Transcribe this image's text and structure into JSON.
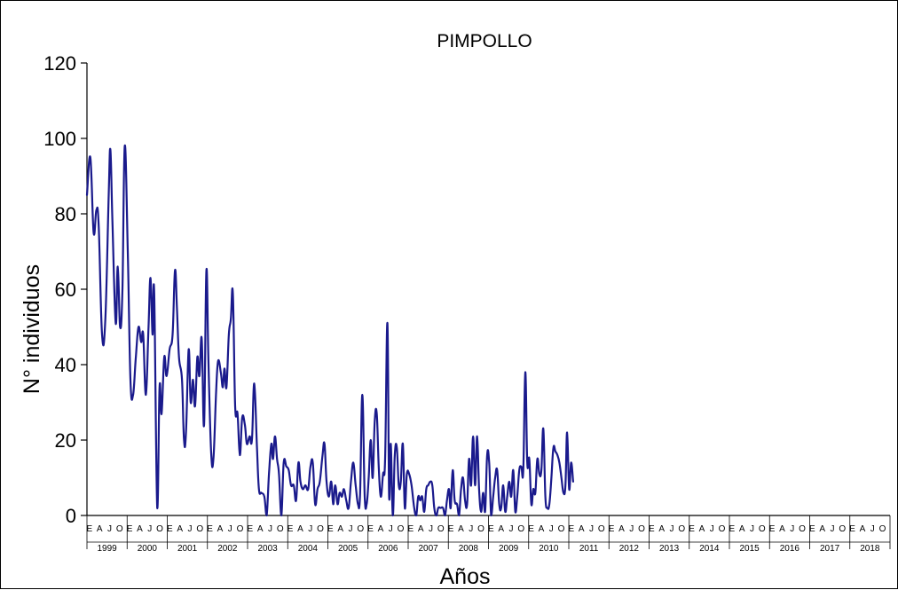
{
  "chart_data": {
    "type": "line",
    "title": "PIMPOLLO",
    "xlabel": "Años",
    "ylabel": "N° individuos",
    "ylim": [
      0,
      120
    ],
    "yticks": [
      0,
      20,
      40,
      60,
      80,
      100,
      120
    ],
    "grid": false,
    "legend": "none",
    "month_labels": [
      "E",
      "A",
      "J",
      "O"
    ],
    "year_labels": [
      "1999",
      "2000",
      "2001",
      "2002",
      "2003",
      "2004",
      "2005",
      "2006",
      "2007",
      "2008",
      "2009",
      "2010",
      "2011",
      "2012",
      "2013",
      "2014",
      "2015",
      "2016",
      "2017",
      "2018"
    ],
    "series": [
      {
        "color": "#1a1a8c",
        "x_unit": "months since Jan 1999",
        "points": [
          [
            0,
            85
          ],
          [
            1,
            95
          ],
          [
            2,
            75
          ],
          [
            2.8,
            81
          ],
          [
            3.5,
            77
          ],
          [
            4.5,
            48
          ],
          [
            5.5,
            52
          ],
          [
            6.5,
            85
          ],
          [
            7,
            97
          ],
          [
            7.6,
            78
          ],
          [
            8.6,
            51
          ],
          [
            9.2,
            66
          ],
          [
            9.9,
            50
          ],
          [
            10.6,
            60
          ],
          [
            11.3,
            98
          ],
          [
            12.2,
            70
          ],
          [
            13,
            36
          ],
          [
            13.8,
            32
          ],
          [
            14.6,
            42
          ],
          [
            15.4,
            50
          ],
          [
            16.2,
            46
          ],
          [
            16.8,
            48
          ],
          [
            17.6,
            32
          ],
          [
            18.4,
            50
          ],
          [
            19,
            63
          ],
          [
            19.6,
            48
          ],
          [
            20.1,
            59
          ],
          [
            21,
            2
          ],
          [
            21.7,
            34
          ],
          [
            22.3,
            27
          ],
          [
            23.1,
            42
          ],
          [
            23.8,
            37
          ],
          [
            24.7,
            44
          ],
          [
            25.6,
            48
          ],
          [
            26.3,
            65
          ],
          [
            26.9,
            55
          ],
          [
            27.5,
            42
          ],
          [
            28.4,
            36
          ],
          [
            29,
            20
          ],
          [
            29.6,
            22
          ],
          [
            30.4,
            44
          ],
          [
            31,
            30
          ],
          [
            31.7,
            36
          ],
          [
            32.3,
            29
          ],
          [
            33,
            42
          ],
          [
            33.6,
            37
          ],
          [
            34.3,
            47
          ],
          [
            35,
            24
          ],
          [
            35.7,
            65
          ],
          [
            36.3,
            41
          ],
          [
            37.1,
            17
          ],
          [
            37.8,
            15
          ],
          [
            38.6,
            33
          ],
          [
            39.2,
            41
          ],
          [
            40,
            38
          ],
          [
            40.6,
            34
          ],
          [
            41.1,
            39
          ],
          [
            41.7,
            34
          ],
          [
            42.4,
            48
          ],
          [
            43,
            52
          ],
          [
            43.6,
            59
          ],
          [
            44.3,
            29
          ],
          [
            45,
            27
          ],
          [
            45.7,
            16
          ],
          [
            46.4,
            26
          ],
          [
            47.2,
            24
          ],
          [
            47.8,
            19
          ],
          [
            48.6,
            21
          ],
          [
            49.3,
            20
          ],
          [
            50,
            35
          ],
          [
            50.8,
            18
          ],
          [
            51.4,
            7
          ],
          [
            52.1,
            6
          ],
          [
            53,
            5
          ],
          [
            53.7,
            0
          ],
          [
            54.4,
            11
          ],
          [
            55.1,
            19
          ],
          [
            55.6,
            15
          ],
          [
            56.2,
            21
          ],
          [
            56.8,
            15
          ],
          [
            57.4,
            11
          ],
          [
            58.1,
            0
          ],
          [
            58.8,
            14
          ],
          [
            59.6,
            13
          ],
          [
            60.3,
            12
          ],
          [
            61,
            8
          ],
          [
            61.8,
            8
          ],
          [
            62.5,
            4
          ],
          [
            63.2,
            14
          ],
          [
            63.8,
            9
          ],
          [
            64.5,
            7
          ],
          [
            65.3,
            8
          ],
          [
            66.1,
            7
          ],
          [
            66.8,
            13
          ],
          [
            67.5,
            14
          ],
          [
            68.2,
            3
          ],
          [
            68.9,
            7
          ],
          [
            69.6,
            9
          ],
          [
            70.4,
            16
          ],
          [
            71,
            19
          ],
          [
            71.6,
            9
          ],
          [
            72.3,
            5
          ],
          [
            73,
            9
          ],
          [
            73.6,
            3
          ],
          [
            74.2,
            8
          ],
          [
            74.9,
            3
          ],
          [
            75.5,
            6
          ],
          [
            76.2,
            5
          ],
          [
            76.8,
            7
          ],
          [
            77.5,
            4
          ],
          [
            78.2,
            2
          ],
          [
            78.9,
            9
          ],
          [
            79.6,
            14
          ],
          [
            80.3,
            8
          ],
          [
            81,
            3
          ],
          [
            81.6,
            5
          ],
          [
            82.3,
            32
          ],
          [
            83,
            5
          ],
          [
            83.6,
            3
          ],
          [
            84.2,
            10
          ],
          [
            84.8,
            20
          ],
          [
            85.4,
            10
          ],
          [
            86,
            25
          ],
          [
            86.6,
            27
          ],
          [
            87.2,
            13
          ],
          [
            87.8,
            5
          ],
          [
            88.5,
            11
          ],
          [
            89.1,
            15
          ],
          [
            89.8,
            51
          ],
          [
            90.3,
            5
          ],
          [
            90.8,
            19
          ],
          [
            91.4,
            0
          ],
          [
            92,
            16
          ],
          [
            92.6,
            18
          ],
          [
            93.2,
            8
          ],
          [
            93.8,
            9
          ],
          [
            94.4,
            19
          ],
          [
            95,
            2
          ],
          [
            95.6,
            11
          ],
          [
            96.3,
            11
          ],
          [
            97,
            8
          ],
          [
            97.8,
            2
          ],
          [
            98.4,
            0
          ],
          [
            99,
            5
          ],
          [
            99.6,
            4
          ],
          [
            100.2,
            5
          ],
          [
            100.8,
            1
          ],
          [
            101.4,
            7
          ],
          [
            102,
            8
          ],
          [
            102.6,
            9
          ],
          [
            103.2,
            8
          ],
          [
            103.8,
            2
          ],
          [
            104.4,
            0
          ],
          [
            105,
            2
          ],
          [
            105.7,
            2
          ],
          [
            106.4,
            2
          ],
          [
            107,
            0
          ],
          [
            107.6,
            4
          ],
          [
            108.2,
            7
          ],
          [
            108.7,
            2
          ],
          [
            109.3,
            12
          ],
          [
            109.9,
            4
          ],
          [
            110.6,
            3
          ],
          [
            111.2,
            0
          ],
          [
            111.8,
            7
          ],
          [
            112.4,
            10
          ],
          [
            113,
            4
          ],
          [
            113.6,
            3
          ],
          [
            114.2,
            15
          ],
          [
            114.8,
            8
          ],
          [
            115.4,
            21
          ],
          [
            116,
            8
          ],
          [
            116.6,
            21
          ],
          [
            117.2,
            7
          ],
          [
            117.8,
            1
          ],
          [
            118.4,
            6
          ],
          [
            119,
            1
          ],
          [
            119.6,
            16
          ],
          [
            120.2,
            14
          ],
          [
            120.8,
            0
          ],
          [
            121.4,
            5
          ],
          [
            122,
            10
          ],
          [
            122.6,
            12
          ],
          [
            123.2,
            3
          ],
          [
            123.8,
            2
          ],
          [
            124.4,
            8
          ],
          [
            125,
            1
          ],
          [
            125.6,
            5
          ],
          [
            126.2,
            9
          ],
          [
            126.8,
            5
          ],
          [
            127.4,
            12
          ],
          [
            128,
            1
          ],
          [
            128.6,
            5
          ],
          [
            129.2,
            12
          ],
          [
            129.8,
            13
          ],
          [
            130.4,
            12
          ],
          [
            131,
            38
          ],
          [
            131.6,
            14
          ],
          [
            132.2,
            15
          ],
          [
            132.8,
            3
          ],
          [
            133.4,
            7
          ],
          [
            134,
            6
          ],
          [
            134.6,
            15
          ],
          [
            135.2,
            11
          ],
          [
            135.8,
            12
          ],
          [
            136.4,
            23
          ],
          [
            137,
            5
          ],
          [
            137.6,
            2
          ],
          [
            138.2,
            3
          ],
          [
            138.8,
            10
          ],
          [
            139.4,
            18
          ],
          [
            140,
            17
          ],
          [
            140.6,
            16
          ],
          [
            141.2,
            14
          ],
          [
            141.8,
            10
          ],
          [
            142.4,
            6
          ],
          [
            143,
            8
          ],
          [
            143.5,
            22
          ],
          [
            144.1,
            7
          ],
          [
            144.7,
            14
          ],
          [
            145.3,
            9
          ]
        ]
      }
    ]
  }
}
